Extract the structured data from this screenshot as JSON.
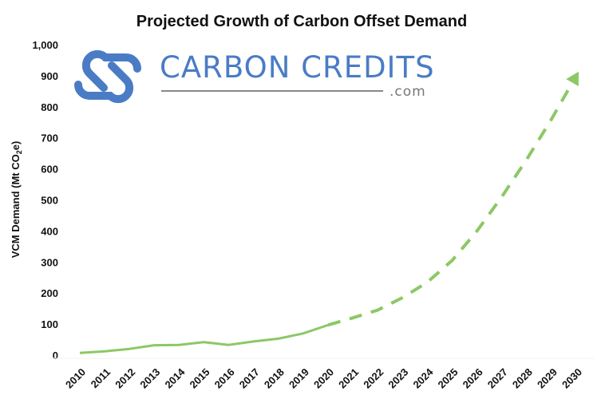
{
  "chart_data": {
    "type": "line",
    "title": "Projected Growth of Carbon Offset Demand",
    "xlabel": "",
    "ylabel": "VCM Demand (Mt CO2e)",
    "ylim": [
      0,
      1000
    ],
    "yticks": [
      "0",
      "100",
      "200",
      "300",
      "400",
      "500",
      "600",
      "700",
      "800",
      "900",
      "1,000"
    ],
    "x": [
      2010,
      2011,
      2012,
      2013,
      2014,
      2015,
      2016,
      2017,
      2018,
      2019,
      2020,
      2021,
      2022,
      2023,
      2024,
      2025,
      2026,
      2027,
      2028,
      2029,
      2030
    ],
    "series": [
      {
        "style": "solid",
        "color": "#8cc866",
        "x": [
          2010,
          2011,
          2012,
          2013,
          2014,
          2015,
          2016,
          2017,
          2018,
          2019,
          2020
        ],
        "values": [
          7,
          12,
          20,
          32,
          33,
          42,
          33,
          44,
          53,
          70,
          97
        ]
      },
      {
        "style": "dashed",
        "color": "#8cc866",
        "arrow_end": true,
        "x": [
          2020,
          2021,
          2022,
          2023,
          2024,
          2025,
          2026,
          2027,
          2028,
          2029,
          2030
        ],
        "values": [
          97,
          120,
          145,
          185,
          235,
          305,
          400,
          510,
          630,
          760,
          900
        ]
      }
    ],
    "grid": false,
    "legend": "none"
  },
  "logo": {
    "name": "CARBON CREDITS",
    "suffix": ".com",
    "color": "#4a7cc6"
  }
}
